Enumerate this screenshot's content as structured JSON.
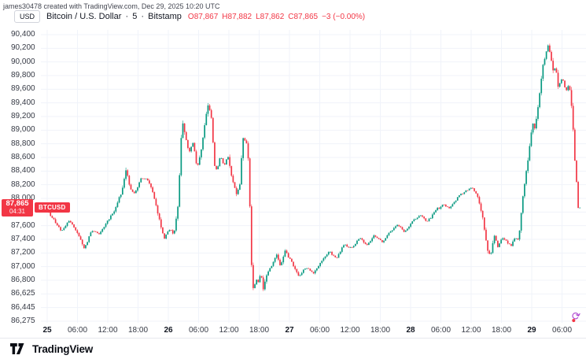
{
  "header": {
    "attribution": "james30478 created with TradingView.com, Dec 29, 2025 10:20 UTC",
    "currency_button": "USD",
    "symbol": "Bitcoin / U.S. Dollar",
    "separator": "·",
    "interval": "5",
    "exchange": "Bitstamp",
    "ohlc": {
      "o_label": "O",
      "o": "87,867",
      "h_label": "H",
      "h": "87,882",
      "l_label": "L",
      "l": "87,862",
      "c_label": "C",
      "c": "87,865",
      "change": "−3 (−0.00%)"
    }
  },
  "price_scale": {
    "last_price": "87,865",
    "countdown": "04:31",
    "symbol_tag": "BTCUSD"
  },
  "footer": {
    "brand": "TradingView"
  },
  "icons": {
    "refresh": "⟳"
  },
  "colors": {
    "up": "#089981",
    "down": "#f23645",
    "grid": "#f0f3fa",
    "axis_text": "#363a45",
    "label_bg": "#f23645"
  },
  "chart_data": {
    "type": "candlestick",
    "title": "Bitcoin / U.S. Dollar · 5 · Bitstamp",
    "ylabel": "USD",
    "scale": "log",
    "grid": true,
    "last_close": 87865,
    "y_axis": [
      {
        "text": "90,400",
        "value": 90400
      },
      {
        "text": "90,200",
        "value": 90200
      },
      {
        "text": "90,000",
        "value": 90000
      },
      {
        "text": "89,800",
        "value": 89800
      },
      {
        "text": "89,600",
        "value": 89600
      },
      {
        "text": "89,400",
        "value": 89400
      },
      {
        "text": "89,200",
        "value": 89200
      },
      {
        "text": "89,000",
        "value": 89000
      },
      {
        "text": "88,800",
        "value": 88800
      },
      {
        "text": "88,600",
        "value": 88600
      },
      {
        "text": "88,400",
        "value": 88400
      },
      {
        "text": "88,200",
        "value": 88200
      },
      {
        "text": "88,000",
        "value": 88000
      },
      {
        "text": "87,800",
        "value": 87800,
        "hidden": true
      },
      {
        "text": "87,600",
        "value": 87600
      },
      {
        "text": "87,400",
        "value": 87400
      },
      {
        "text": "87,200",
        "value": 87200
      },
      {
        "text": "87,000",
        "value": 87000
      },
      {
        "text": "86,800",
        "value": 86800
      },
      {
        "text": "86,625",
        "value": 86625
      },
      {
        "text": "86,445",
        "value": 86445
      },
      {
        "text": "86,275",
        "value": 86275
      }
    ],
    "x_ticks": [
      {
        "label": "25",
        "h": 0,
        "major": true
      },
      {
        "label": "06:00",
        "h": 6
      },
      {
        "label": "12:00",
        "h": 12
      },
      {
        "label": "18:00",
        "h": 18
      },
      {
        "label": "26",
        "h": 24,
        "major": true
      },
      {
        "label": "06:00",
        "h": 30
      },
      {
        "label": "12:00",
        "h": 36
      },
      {
        "label": "18:00",
        "h": 42
      },
      {
        "label": "27",
        "h": 48,
        "major": true
      },
      {
        "label": "06:00",
        "h": 54
      },
      {
        "label": "12:00",
        "h": 60
      },
      {
        "label": "18:00",
        "h": 66
      },
      {
        "label": "28",
        "h": 72,
        "major": true
      },
      {
        "label": "06:00",
        "h": 78
      },
      {
        "label": "12:00",
        "h": 84
      },
      {
        "label": "18:00",
        "h": 90
      },
      {
        "label": "29",
        "h": 96,
        "major": true
      },
      {
        "label": "06:00",
        "h": 102
      }
    ],
    "price_path": [
      [
        -0.5,
        87820
      ],
      [
        0,
        87850
      ],
      [
        1.5,
        87680
      ],
      [
        3,
        87520
      ],
      [
        4.5,
        87680
      ],
      [
        6,
        87520
      ],
      [
        7.5,
        87260
      ],
      [
        8.2,
        87380
      ],
      [
        9,
        87530
      ],
      [
        10.5,
        87480
      ],
      [
        12,
        87660
      ],
      [
        13.5,
        87820
      ],
      [
        15,
        88120
      ],
      [
        15.8,
        88440
      ],
      [
        16.5,
        88170
      ],
      [
        17.5,
        88060
      ],
      [
        18.7,
        88280
      ],
      [
        19.8,
        88300
      ],
      [
        21,
        88120
      ],
      [
        22,
        87820
      ],
      [
        23.3,
        87400
      ],
      [
        24.3,
        87560
      ],
      [
        25.3,
        87480
      ],
      [
        26.1,
        87900
      ],
      [
        26.9,
        89180
      ],
      [
        27.4,
        88950
      ],
      [
        28.3,
        88680
      ],
      [
        29.1,
        88830
      ],
      [
        29.9,
        88430
      ],
      [
        30.7,
        88720
      ],
      [
        31.5,
        89150
      ],
      [
        32.1,
        89400
      ],
      [
        32.7,
        89180
      ],
      [
        33.3,
        88480
      ],
      [
        33.8,
        88400
      ],
      [
        34.5,
        88640
      ],
      [
        35.2,
        88480
      ],
      [
        36,
        88620
      ],
      [
        36.8,
        88280
      ],
      [
        37.7,
        88060
      ],
      [
        38.4,
        88240
      ],
      [
        38.9,
        88900
      ],
      [
        39.4,
        88850
      ],
      [
        39.9,
        88760
      ],
      [
        40.3,
        87950
      ],
      [
        40.55,
        87200
      ],
      [
        40.8,
        86760
      ],
      [
        41.1,
        86660
      ],
      [
        41.5,
        86840
      ],
      [
        42,
        86760
      ],
      [
        42.5,
        86920
      ],
      [
        43,
        86680
      ],
      [
        43.6,
        86880
      ],
      [
        44.6,
        87000
      ],
      [
        45.6,
        87180
      ],
      [
        46.4,
        87000
      ],
      [
        47.3,
        87240
      ],
      [
        48.6,
        87060
      ],
      [
        50,
        86860
      ],
      [
        51.5,
        87000
      ],
      [
        53,
        86900
      ],
      [
        54.5,
        87090
      ],
      [
        56,
        87220
      ],
      [
        57.5,
        87120
      ],
      [
        59,
        87320
      ],
      [
        60.5,
        87260
      ],
      [
        62,
        87420
      ],
      [
        63.5,
        87320
      ],
      [
        65,
        87460
      ],
      [
        66.5,
        87360
      ],
      [
        68,
        87500
      ],
      [
        69.5,
        87610
      ],
      [
        71,
        87510
      ],
      [
        72.5,
        87660
      ],
      [
        74,
        87760
      ],
      [
        75.5,
        87660
      ],
      [
        77,
        87810
      ],
      [
        78.5,
        87910
      ],
      [
        80,
        87860
      ],
      [
        81.5,
        88010
      ],
      [
        83,
        88110
      ],
      [
        84.5,
        88160
      ],
      [
        85.5,
        88010
      ],
      [
        86.5,
        87710
      ],
      [
        87.3,
        87260
      ],
      [
        88,
        87160
      ],
      [
        88.7,
        87460
      ],
      [
        89.5,
        87280
      ],
      [
        90.3,
        87430
      ],
      [
        91.2,
        87360
      ],
      [
        92,
        87310
      ],
      [
        92.8,
        87420
      ],
      [
        93.6,
        87380
      ],
      [
        94.2,
        87880
      ],
      [
        94.9,
        88320
      ],
      [
        95.6,
        88650
      ],
      [
        96.3,
        89120
      ],
      [
        96.8,
        89020
      ],
      [
        97.5,
        89380
      ],
      [
        98.3,
        89920
      ],
      [
        99,
        90140
      ],
      [
        99.5,
        90260
      ],
      [
        99.9,
        90080
      ],
      [
        100.4,
        89870
      ],
      [
        100.9,
        89930
      ],
      [
        101.4,
        89620
      ],
      [
        102.2,
        89780
      ],
      [
        102.9,
        89560
      ],
      [
        103.6,
        89680
      ],
      [
        104,
        89400
      ],
      [
        104.2,
        89280
      ],
      [
        104.6,
        88650
      ],
      [
        105,
        88280
      ],
      [
        105.4,
        87820
      ],
      [
        105.7,
        87865
      ]
    ],
    "render": {
      "bars": 320,
      "h_start": -0.5,
      "h_end": 105.7,
      "seed": 11,
      "noise": 22,
      "wick": 16
    }
  }
}
